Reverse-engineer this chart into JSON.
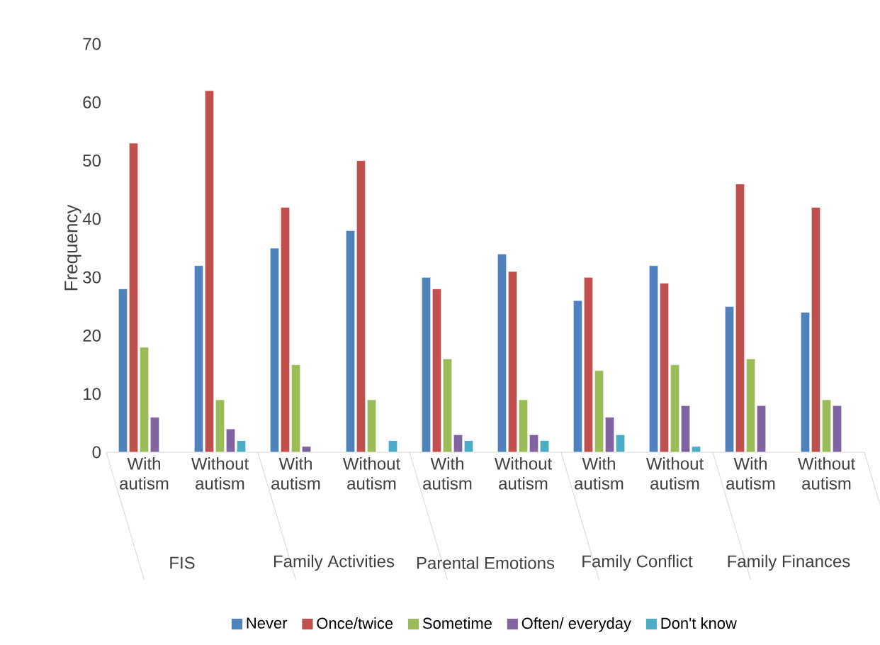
{
  "chart_data": {
    "type": "bar",
    "ylabel": "Frequency",
    "categories": [
      "With autism",
      "Without autism",
      "With autism",
      "Without autism",
      "With autism",
      "Without autism",
      "With autism",
      "Without autism",
      "With autism",
      "Without autism"
    ],
    "annotations": [
      "FIS",
      "Family Activities",
      "Parental Emotions",
      "Family Conflict",
      "Family Finances"
    ],
    "series": [
      {
        "name": "Never",
        "color": "#4f81bd",
        "values": [
          28,
          32,
          35,
          38,
          30,
          34,
          26,
          32,
          25,
          24
        ]
      },
      {
        "name": "Once/twice",
        "color": "#c0504d",
        "values": [
          53,
          62,
          42,
          50,
          28,
          31,
          30,
          29,
          46,
          42
        ]
      },
      {
        "name": "Sometime",
        "color": "#9bbb59",
        "values": [
          18,
          9,
          15,
          9,
          16,
          9,
          14,
          15,
          16,
          9
        ]
      },
      {
        "name": "Often/ everyday",
        "color": "#8064a2",
        "values": [
          6,
          4,
          1,
          null,
          3,
          3,
          6,
          8,
          8,
          8
        ]
      },
      {
        "name": "Don't know",
        "color": "#4bacc6",
        "values": [
          null,
          2,
          null,
          2,
          2,
          2,
          3,
          1,
          null,
          null
        ]
      }
    ],
    "ylim": [
      0,
      70
    ],
    "yticks": [
      0,
      10,
      20,
      30,
      40,
      50,
      60,
      70
    ],
    "grid": false,
    "legend": "bottom"
  }
}
